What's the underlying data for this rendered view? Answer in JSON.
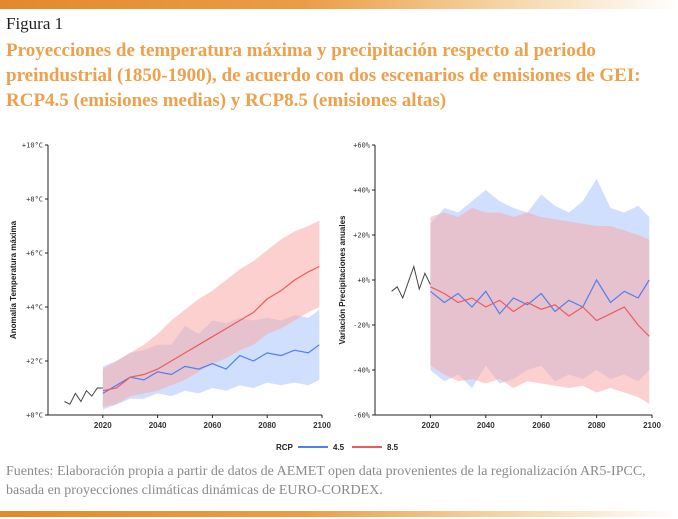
{
  "figure_label": "Figura 1",
  "figure_title": "Proyecciones de temperatura máxima y precipitación respecto al periodo preindustrial (1850-1900), de acuerdo con dos escenarios de emisiones de GEI: RCP4.5 (emisiones medias) y RCP8.5 (emisiones altas)",
  "source_text": "Fuentes: Elaboración propia a partir de datos de AEMET open data provenientes de la regionalización AR5-IPCC, basada en proyecciones climáticas dinámicas de EURO-CORDEX.",
  "colors": {
    "historical": "#444444",
    "rcp45": "#4f7ff2",
    "rcp85": "#ee5a5a",
    "band45": "#a9c4fb",
    "band85": "#f7aaa8",
    "accent": "#eea04a"
  },
  "legend": {
    "title": "RCP",
    "items": [
      "4.5",
      "8.5"
    ]
  },
  "chart_data": [
    {
      "type": "line",
      "ylabel": "Anomalía Temperatura máxima",
      "xlabel": "",
      "xlim": [
        2000,
        2100
      ],
      "ylim": [
        0,
        10
      ],
      "x_ticks": [
        "2020",
        "2040",
        "2060",
        "2080",
        "2100"
      ],
      "y_ticks": [
        "+0°C",
        "+2°C",
        "+4°C",
        "+6°C",
        "+8°C",
        "+10°C"
      ],
      "historical": {
        "x": [
          2006,
          2008,
          2010,
          2012,
          2014,
          2016,
          2018,
          2020
        ],
        "values": [
          0.5,
          0.4,
          0.8,
          0.5,
          0.9,
          0.7,
          1.0,
          1.0
        ]
      },
      "series": [
        {
          "name": "4.5",
          "x": [
            2020,
            2025,
            2030,
            2035,
            2040,
            2045,
            2050,
            2055,
            2060,
            2065,
            2070,
            2075,
            2080,
            2085,
            2090,
            2095,
            2099
          ],
          "values": [
            0.8,
            1.1,
            1.4,
            1.3,
            1.6,
            1.5,
            1.8,
            1.7,
            1.9,
            1.7,
            2.2,
            2.0,
            2.3,
            2.2,
            2.4,
            2.3,
            2.6
          ],
          "low": [
            0.2,
            0.4,
            0.6,
            0.6,
            0.8,
            0.7,
            0.9,
            0.8,
            1.0,
            0.9,
            1.1,
            1.0,
            1.2,
            1.1,
            1.2,
            1.1,
            1.3
          ],
          "high": [
            1.8,
            2.0,
            2.3,
            2.4,
            2.6,
            2.6,
            3.3,
            3.0,
            3.5,
            3.4,
            3.6,
            3.5,
            3.6,
            3.5,
            3.7,
            3.6,
            3.9
          ]
        },
        {
          "name": "8.5",
          "x": [
            2020,
            2025,
            2030,
            2035,
            2040,
            2045,
            2050,
            2055,
            2060,
            2065,
            2070,
            2075,
            2080,
            2085,
            2090,
            2095,
            2099
          ],
          "values": [
            0.9,
            1.0,
            1.4,
            1.5,
            1.7,
            2.0,
            2.3,
            2.6,
            2.9,
            3.2,
            3.5,
            3.8,
            4.3,
            4.6,
            5.0,
            5.3,
            5.5
          ],
          "low": [
            0.3,
            0.4,
            0.7,
            0.8,
            0.9,
            1.1,
            1.3,
            1.6,
            1.9,
            2.1,
            2.4,
            2.6,
            3.0,
            3.2,
            3.5,
            3.8,
            4.0
          ],
          "high": [
            1.7,
            2.0,
            2.3,
            2.6,
            3.0,
            3.5,
            3.9,
            4.3,
            4.6,
            5.0,
            5.4,
            5.7,
            6.1,
            6.5,
            6.8,
            7.0,
            7.2
          ]
        }
      ]
    },
    {
      "type": "line",
      "ylabel": "Variación Precipitaciones anuales",
      "xlabel": "",
      "xlim": [
        2000,
        2100
      ],
      "ylim": [
        -60,
        60
      ],
      "x_ticks": [
        "2020",
        "2040",
        "2060",
        "2080",
        "2100"
      ],
      "y_ticks": [
        "-60%",
        "-40%",
        "-20%",
        "+0%",
        "+20%",
        "+40%",
        "+60%"
      ],
      "historical": {
        "x": [
          2006,
          2008,
          2010,
          2012,
          2014,
          2016,
          2018,
          2020
        ],
        "values": [
          -5,
          -3,
          -8,
          -1,
          6,
          -4,
          3,
          -2
        ]
      },
      "series": [
        {
          "name": "4.5",
          "x": [
            2020,
            2025,
            2030,
            2035,
            2040,
            2045,
            2050,
            2055,
            2060,
            2065,
            2070,
            2075,
            2080,
            2085,
            2090,
            2095,
            2099
          ],
          "values": [
            -5,
            -10,
            -6,
            -12,
            -5,
            -15,
            -8,
            -11,
            -6,
            -14,
            -9,
            -12,
            0,
            -10,
            -5,
            -8,
            0
          ],
          "low": [
            -40,
            -45,
            -42,
            -48,
            -38,
            -46,
            -44,
            -40,
            -38,
            -45,
            -42,
            -44,
            -40,
            -44,
            -42,
            -45,
            -40
          ],
          "high": [
            25,
            32,
            30,
            35,
            40,
            35,
            32,
            30,
            38,
            33,
            30,
            35,
            45,
            32,
            30,
            33,
            28
          ]
        },
        {
          "name": "8.5",
          "x": [
            2020,
            2025,
            2030,
            2035,
            2040,
            2045,
            2050,
            2055,
            2060,
            2065,
            2070,
            2075,
            2080,
            2085,
            2090,
            2095,
            2099
          ],
          "values": [
            -3,
            -6,
            -10,
            -8,
            -12,
            -9,
            -14,
            -10,
            -13,
            -11,
            -16,
            -12,
            -18,
            -15,
            -12,
            -20,
            -25
          ],
          "low": [
            -38,
            -42,
            -45,
            -44,
            -46,
            -44,
            -48,
            -45,
            -46,
            -47,
            -48,
            -47,
            -50,
            -48,
            -50,
            -52,
            -55
          ],
          "high": [
            28,
            30,
            28,
            32,
            30,
            30,
            28,
            30,
            28,
            27,
            26,
            25,
            24,
            24,
            22,
            20,
            18
          ]
        }
      ]
    }
  ]
}
